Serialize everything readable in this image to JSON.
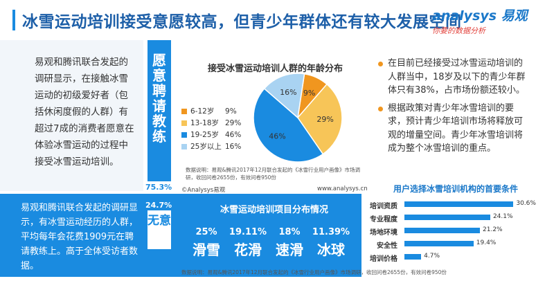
{
  "header": {
    "title": "冰雪运动培训接受意愿较高，但青少年群体还有较大发展空间",
    "logo_main": "analysys 易观",
    "logo_sub": "你要的数据分析"
  },
  "left_panel": {
    "text": "易观和腾讯联合发起的调研显示，在接触冰雪运动的初级爱好者（包括休闲度假的人群）有超过7成的消费者愿意在体验冰雪运动的过程中接受冰雪运动培训。",
    "column_label": "愿意聘请教练",
    "pct_willing": "75.3%",
    "pct_unwilling": "24.7%",
    "unwilling_label": "无意"
  },
  "age_chart_section": {
    "note": "数据说明：易观&腾讯2017年12月联合发起的《冰雪行业用户画像》市场调研，收回问卷2655份，有效问卷950份",
    "copyright": "©Analysys易观",
    "url": "www.analysys.cn"
  },
  "chart_data": [
    {
      "type": "pie",
      "title": "接受冰雪运动培训人群的年龄分布",
      "labels": [
        "6-12岁",
        "13-18岁",
        "19-25岁",
        "25岁以上"
      ],
      "values": [
        9,
        29,
        46,
        16
      ],
      "colors": [
        "#f0961f",
        "#f7c558",
        "#1a8be0",
        "#a9d3f2"
      ],
      "legend": "left"
    },
    {
      "type": "bar",
      "title": "用户选择冰雪培训机构的首要条件",
      "categories": [
        "培训资质",
        "专业程度",
        "场地环境",
        "安全性",
        "培训价格"
      ],
      "values": [
        30.6,
        24.1,
        21.2,
        19.4,
        4.7
      ],
      "value_labels": [
        "30.6%",
        "24.1%",
        "21.2%",
        "19.4%",
        "4.7%"
      ],
      "orientation": "horizontal",
      "xlim": [
        0,
        35
      ]
    }
  ],
  "right_panel": {
    "bullet1": "在目前已经接受过冰雪运动培训的人群当中，18岁及以下的青少年群体只有38%，占市场份额还较小。",
    "bullet2": "根据政策对青少年冰雪培训的要求，预计青少年培训市场将释放可观的增量空间。青少年冰雪培训将成为整个冰雪培训的重点。"
  },
  "bottom_panel": {
    "text": "易观和腾讯联合发起的调研显示，有冰雪运动经历的人群，平均每年会花费1909元在聘请教练上。高于全体受访者数据。",
    "projects_title": "冰雪运动培训项目分布情况",
    "projects": [
      {
        "pct": "25%",
        "name": "滑雪"
      },
      {
        "pct": "19.11%",
        "name": "花滑"
      },
      {
        "pct": "18%",
        "name": "速滑"
      },
      {
        "pct": "11.39%",
        "name": "冰球"
      }
    ],
    "note": "数据说明：易观&腾讯2017年12月联合发起的《冰雪行业用户画像》市场调研，收回问卷2655份，有效问卷950份"
  }
}
